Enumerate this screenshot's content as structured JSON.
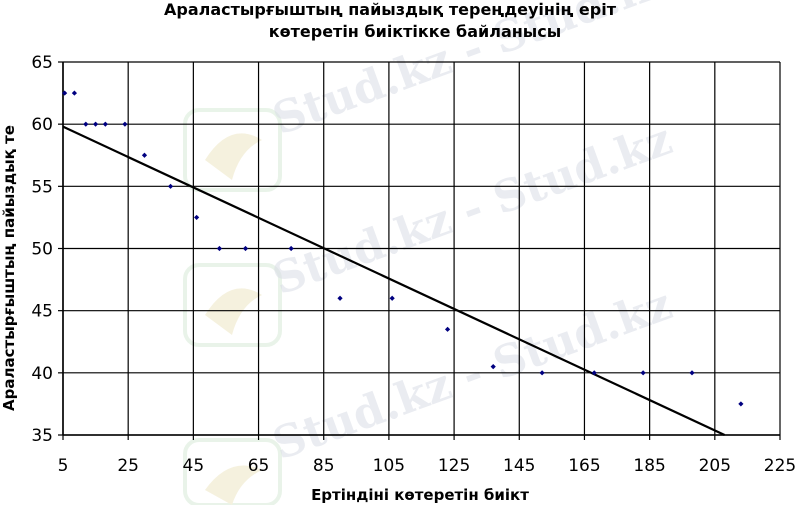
{
  "watermark": {
    "text": "Stud.kz - Stud.kz"
  },
  "chart_data": {
    "type": "scatter",
    "title_lines": [
      "Араластырғыштың пайыздық тереңдеуінің ерiт",
      "көтеретін биіктікке байланысы"
    ],
    "xlabel": "Ертіндіні көтеретін биікт",
    "ylabel": "Араластырғыштың пайыздық те",
    "xlim": [
      5,
      225
    ],
    "ylim": [
      35,
      65
    ],
    "x_ticks": [
      5,
      25,
      45,
      65,
      85,
      105,
      125,
      145,
      165,
      185,
      205,
      225
    ],
    "y_ticks": [
      35,
      40,
      45,
      50,
      55,
      60,
      65
    ],
    "grid": true,
    "legend": "none",
    "marker_color": "#000080",
    "line_color": "#000000",
    "points": [
      {
        "x": 5.5,
        "y": 62.5
      },
      {
        "x": 8.5,
        "y": 62.5
      },
      {
        "x": 12,
        "y": 60
      },
      {
        "x": 15,
        "y": 60
      },
      {
        "x": 18,
        "y": 60
      },
      {
        "x": 24,
        "y": 60
      },
      {
        "x": 30,
        "y": 57.5
      },
      {
        "x": 38,
        "y": 55
      },
      {
        "x": 46,
        "y": 52.5
      },
      {
        "x": 53,
        "y": 50
      },
      {
        "x": 61,
        "y": 50
      },
      {
        "x": 75,
        "y": 50
      },
      {
        "x": 90,
        "y": 46
      },
      {
        "x": 106,
        "y": 46
      },
      {
        "x": 123,
        "y": 43.5
      },
      {
        "x": 137,
        "y": 40.5
      },
      {
        "x": 152,
        "y": 40
      },
      {
        "x": 168,
        "y": 40
      },
      {
        "x": 183,
        "y": 40
      },
      {
        "x": 198,
        "y": 40
      },
      {
        "x": 213,
        "y": 37.5
      }
    ],
    "trendline": {
      "type": "linear",
      "start": {
        "x": 5,
        "y": 59.8
      },
      "end": {
        "x": 208,
        "y": 35
      }
    }
  }
}
